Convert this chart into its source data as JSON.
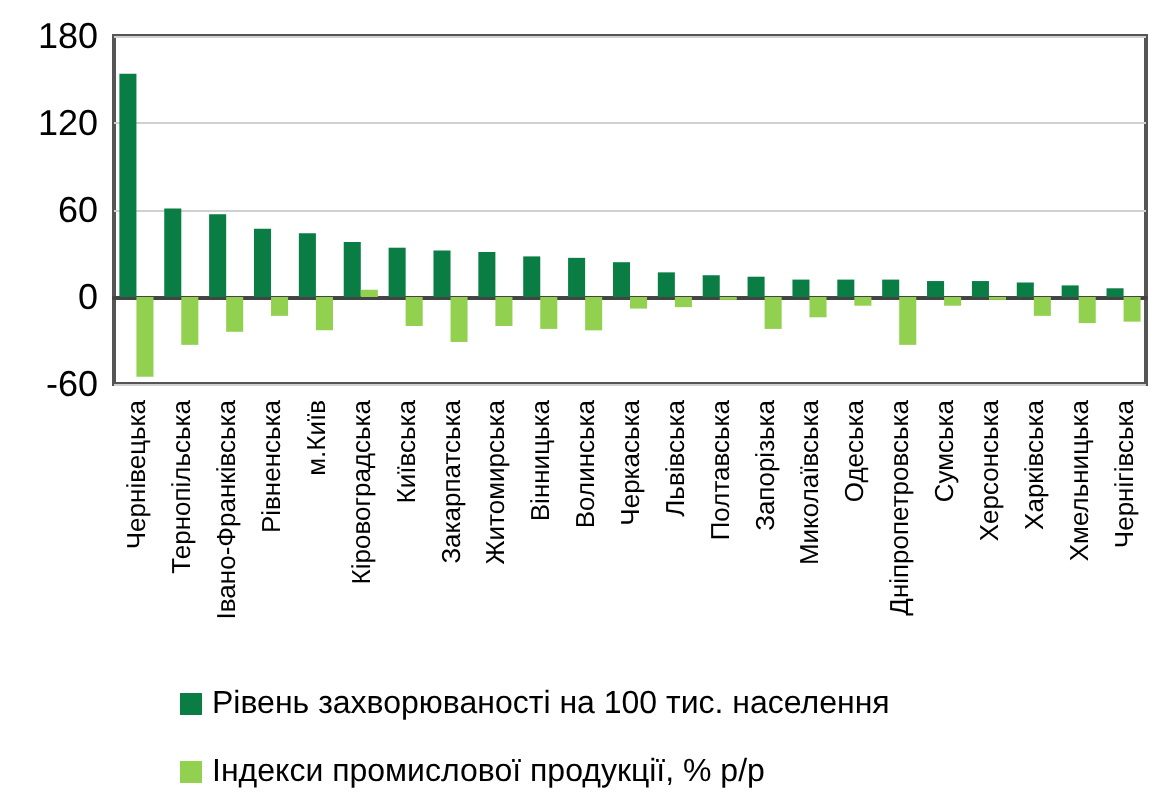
{
  "chart_data": {
    "type": "bar",
    "categories": [
      "Чернівецька",
      "Тернопільська",
      "Івано-Франківська",
      "Рівненська",
      "м.Київ",
      "Кіровоградська",
      "Київська",
      "Закарпатська",
      "Житомирська",
      "Вінницька",
      "Волинська",
      "Черкаська",
      "Львівська",
      "Полтавська",
      "Запорізька",
      "Миколаївська",
      "Одеська",
      "Дніпропетровська",
      "Сумська",
      "Херсонська",
      "Харківська",
      "Хмельницька",
      "Чернігівська"
    ],
    "series": [
      {
        "name": "Рівень захворюваності на 100 тис. населення",
        "color": "#0a7d45",
        "values": [
          154,
          61,
          57,
          47,
          44,
          38,
          34,
          32,
          31,
          28,
          27,
          24,
          17,
          15,
          14,
          12,
          12,
          12,
          11,
          11,
          10,
          8,
          6
        ]
      },
      {
        "name": "Індекси промислової продукції, % р/р",
        "color": "#92d050",
        "values": [
          -55,
          -33,
          -24,
          -13,
          -23,
          5,
          -20,
          -31,
          -20,
          -22,
          -23,
          -8,
          -7,
          -2,
          -22,
          -14,
          -6,
          -33,
          -6,
          -2,
          -13,
          -18,
          -17
        ]
      }
    ],
    "ylim": [
      -60,
      180
    ],
    "yticks": [
      -60,
      0,
      60,
      120,
      180
    ],
    "grid": "y",
    "legend": "bottom"
  }
}
